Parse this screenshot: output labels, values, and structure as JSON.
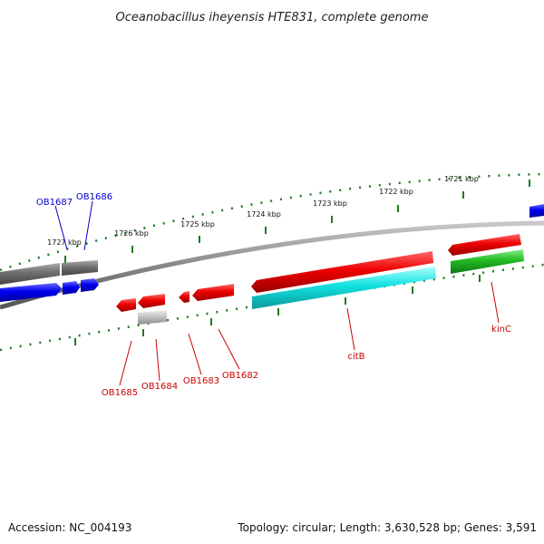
{
  "title": "Oceanobacillus iheyensis HTE831, complete genome",
  "footer": {
    "accession": "Accession: NC_004193",
    "summary": "Topology: circular; Length: 3,630,528 bp; Genes: 3,591"
  },
  "scale_labels": [
    "1721 kbp",
    "1722 kbp",
    "1723 kbp",
    "1724 kbp",
    "1725 kbp",
    "1726 kbp",
    "1727 kbp"
  ],
  "gene_labels": [
    {
      "name": "OB1687",
      "color": "#0000cc"
    },
    {
      "name": "OB1686",
      "color": "#0000cc"
    },
    {
      "name": "OB1685",
      "color": "#cc0000"
    },
    {
      "name": "OB1684",
      "color": "#cc0000"
    },
    {
      "name": "OB1683",
      "color": "#cc0000"
    },
    {
      "name": "OB1682",
      "color": "#cc0000"
    },
    {
      "name": "citB",
      "color": "#cc0000"
    },
    {
      "name": "kinC",
      "color": "#cc0000"
    }
  ],
  "colors": {
    "backbone": "#8a8a8a",
    "scale_ticks": "#1f7a1f",
    "forward_cds": "#e41010",
    "reverse_cds": "#1010e4",
    "rna": "#22cc22",
    "aux": "#22dddd",
    "pseudo": "#777777"
  }
}
